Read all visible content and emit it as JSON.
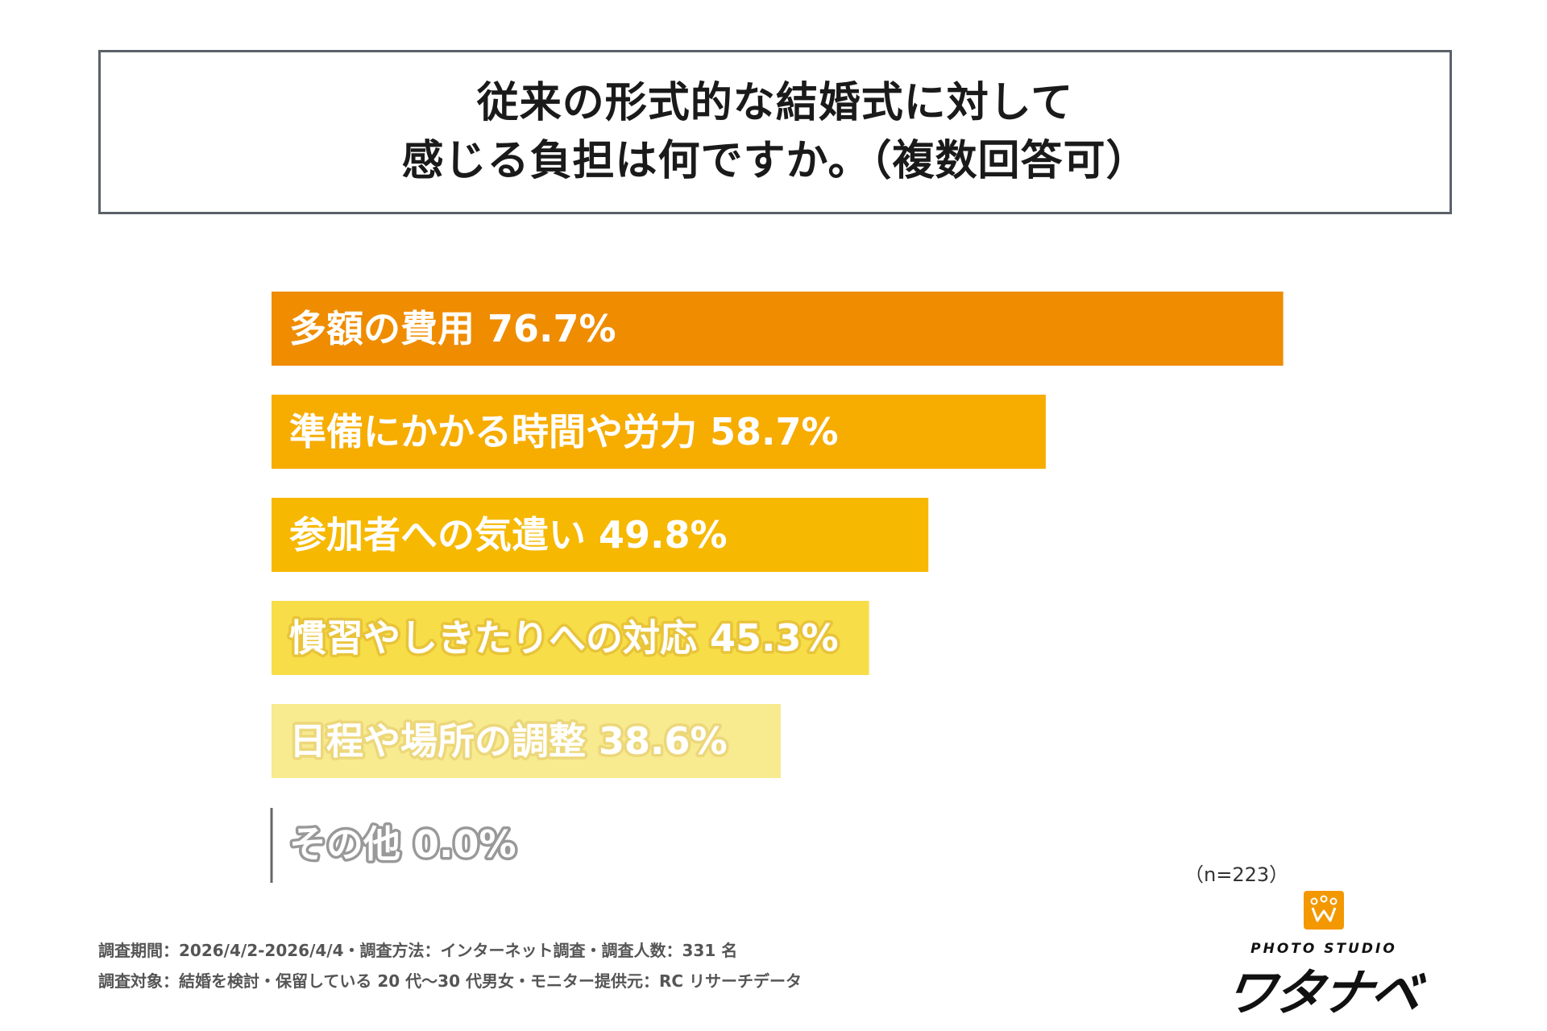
{
  "title": {
    "line1": "従来の形式的な結婚式に対して",
    "line2": "感じる負担は何ですか。（複数回答可）"
  },
  "chart_data": {
    "type": "bar",
    "orientation": "horizontal",
    "categories": [
      "多額の費用",
      "準備にかかる時間や労力",
      "参加者への気遣い",
      "慣習やしきたりへの対応",
      "日程や場所の調整",
      "その他"
    ],
    "values": [
      76.7,
      58.7,
      49.8,
      45.3,
      38.6,
      0.0
    ],
    "value_labels": [
      "76.7%",
      "58.7%",
      "49.8%",
      "45.3%",
      "38.6%",
      "0.0%"
    ],
    "colors": [
      "#ef8c00",
      "#f7ac00",
      "#f6b800",
      "#f7dd48",
      "#f8ea8e",
      "#cccccc"
    ],
    "unit": "%",
    "xlim": [
      0,
      100
    ],
    "grid": false,
    "legend": "none"
  },
  "sample_note": "（n=223）",
  "footer": {
    "line1": "調査期間：2026/4/2-2026/4/4・調査方法：インターネット調査・調査人数：331 名",
    "line2": "調査対象：結婚を検討・保留している 20 代～30 代男女・モニター提供元：RC リサーチデータ"
  },
  "logo": {
    "icon": "crown-w-logo-icon",
    "sub": "PHOTO STUDIO",
    "main": "ワタナベ"
  }
}
